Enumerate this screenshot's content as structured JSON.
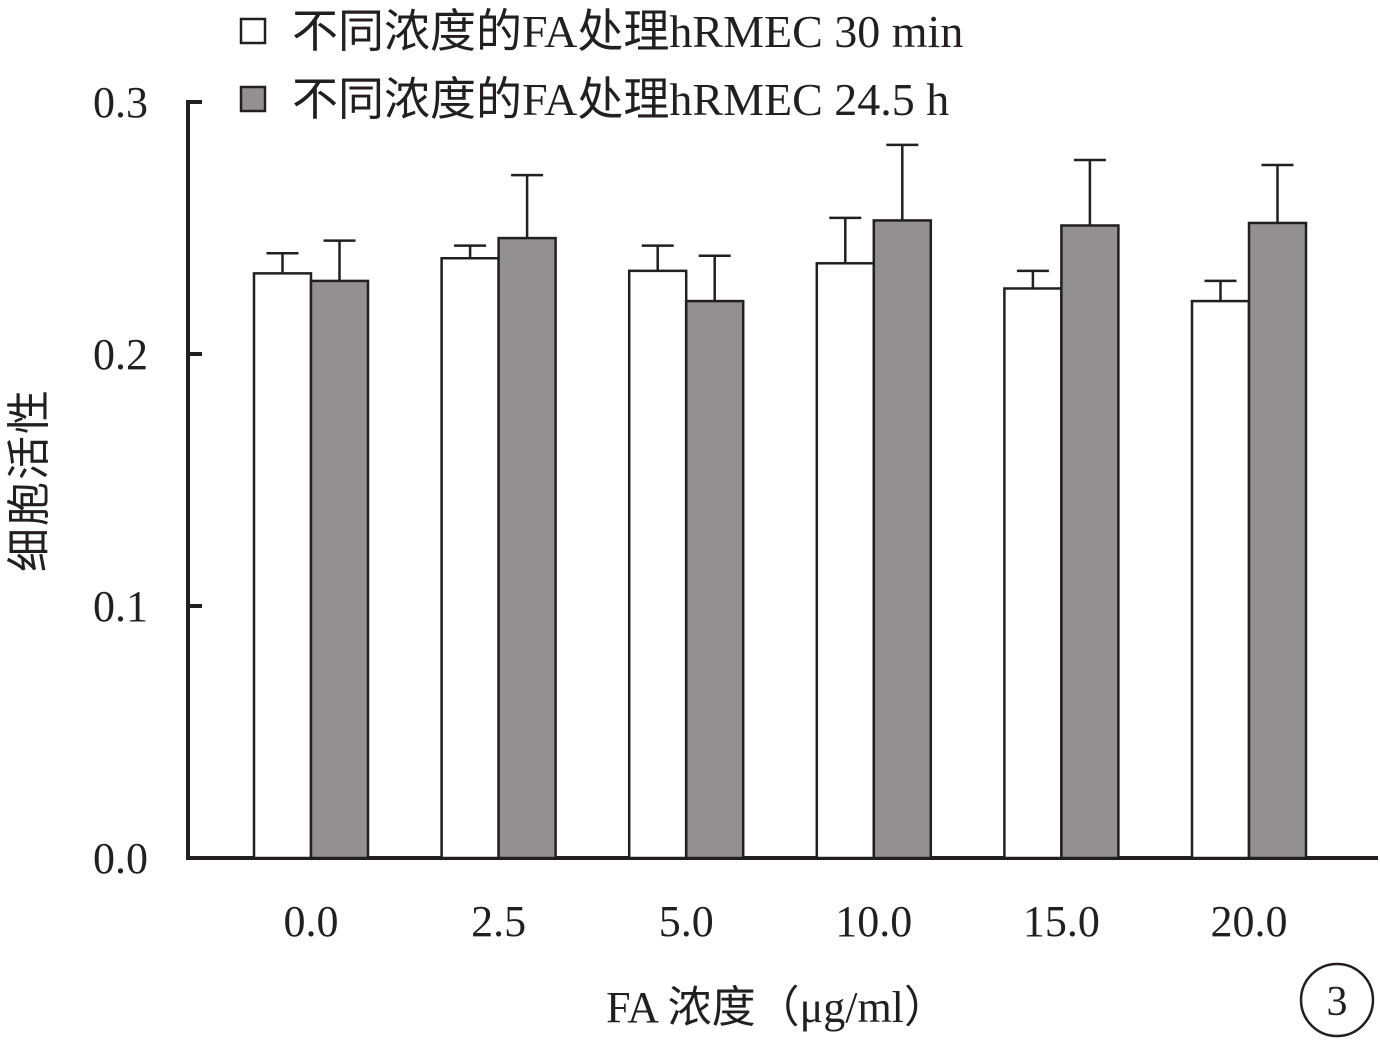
{
  "chart_data": {
    "type": "bar",
    "title": "",
    "xlabel": "FA 浓度（μg/ml）",
    "ylabel": "细胞活性",
    "ylim": [
      0,
      0.3
    ],
    "yticks": [
      "0.0",
      "0.1",
      "0.2",
      "0.3"
    ],
    "categories": [
      "0.0",
      "2.5",
      "5.0",
      "10.0",
      "15.0",
      "20.0"
    ],
    "series": [
      {
        "name": "不同浓度的FA处理hRMEC 30 min",
        "color": "#ffffff",
        "values": [
          0.232,
          0.238,
          0.233,
          0.236,
          0.226,
          0.221
        ],
        "errors": [
          0.008,
          0.005,
          0.01,
          0.018,
          0.007,
          0.008
        ]
      },
      {
        "name": "不同浓度的FA处理hRMEC 24.5 h",
        "color": "#929090",
        "values": [
          0.229,
          0.246,
          0.221,
          0.253,
          0.251,
          0.252
        ],
        "errors": [
          0.016,
          0.025,
          0.018,
          0.03,
          0.026,
          0.023
        ]
      }
    ],
    "legend_position": "top",
    "grid": false,
    "panel_label": "3"
  }
}
